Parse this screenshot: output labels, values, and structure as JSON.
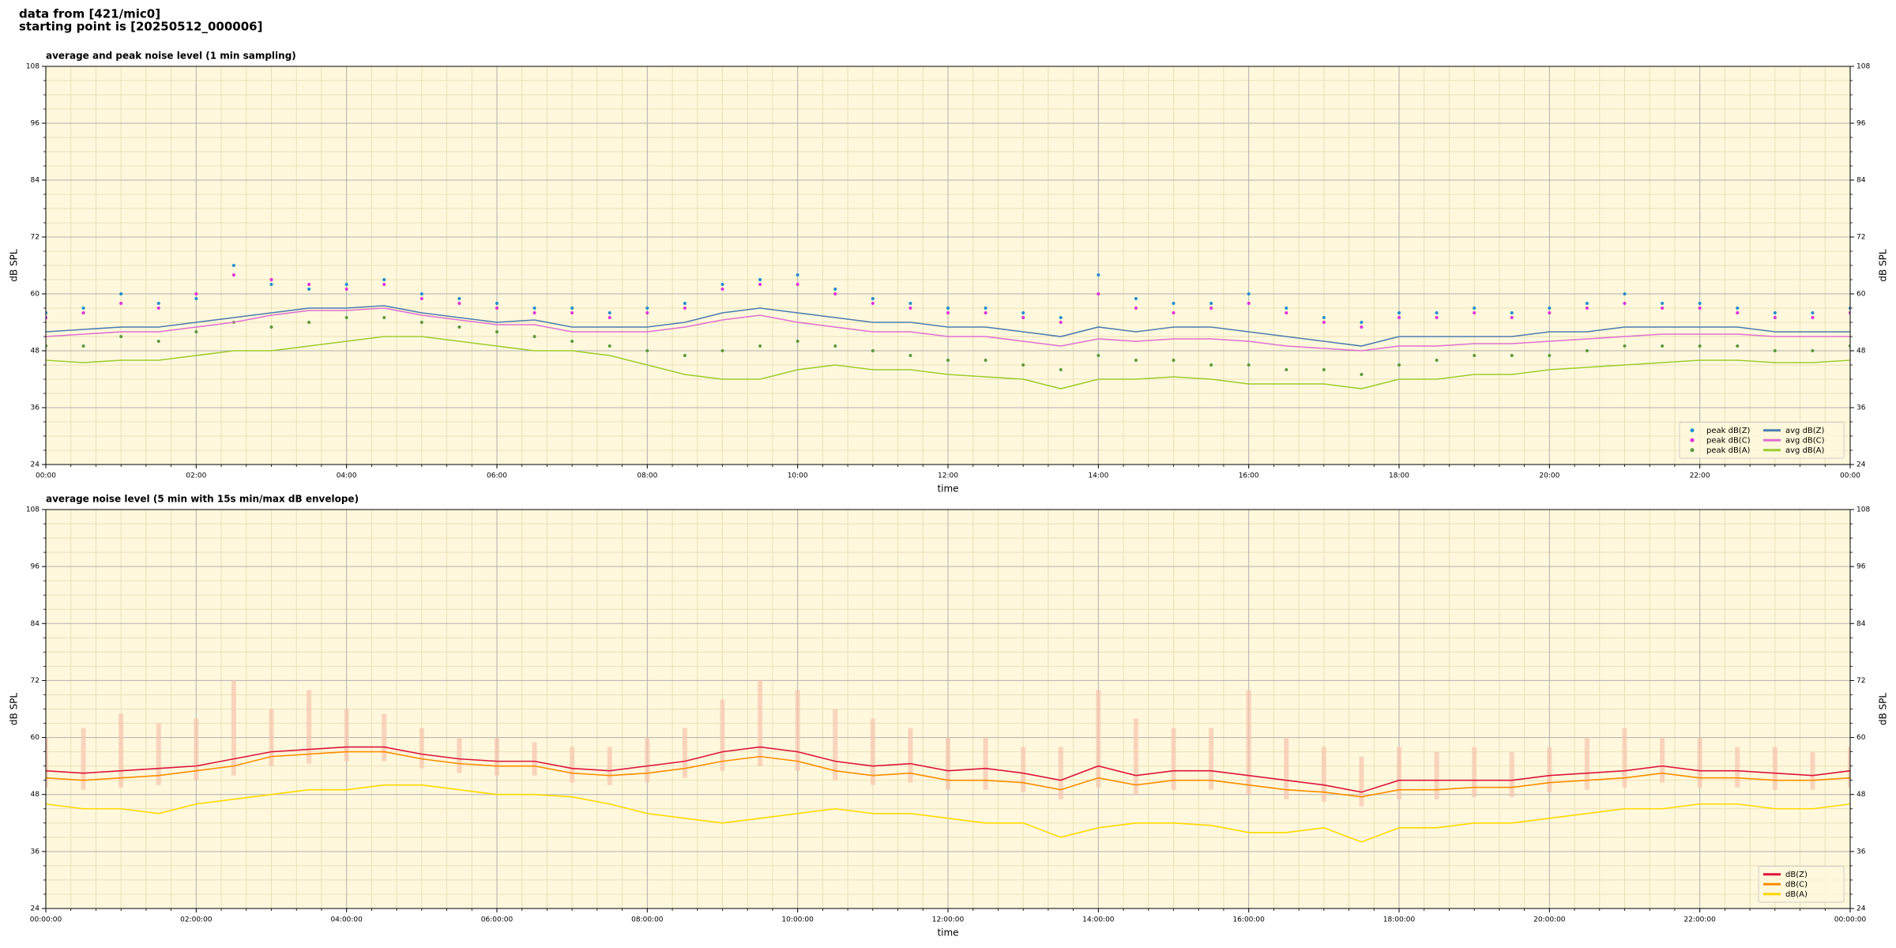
{
  "header": {
    "lines": [
      "data from [421/mic0]",
      "starting point is [20250512_000006]"
    ]
  },
  "chart_data": [
    {
      "type": "line",
      "title": "average and peak noise level (1 min sampling)",
      "xlabel": "time",
      "ylabel": "dB SPL",
      "ylabel_right": "dB SPL",
      "xlim": [
        0,
        24
      ],
      "ylim": [
        24,
        108
      ],
      "xticks": [
        {
          "value": 0,
          "label": "00:00"
        },
        {
          "value": 2,
          "label": "02:00"
        },
        {
          "value": 4,
          "label": "04:00"
        },
        {
          "value": 6,
          "label": "06:00"
        },
        {
          "value": 8,
          "label": "08:00"
        },
        {
          "value": 10,
          "label": "10:00"
        },
        {
          "value": 12,
          "label": "12:00"
        },
        {
          "value": 14,
          "label": "14:00"
        },
        {
          "value": 16,
          "label": "16:00"
        },
        {
          "value": 18,
          "label": "18:00"
        },
        {
          "value": 20,
          "label": "20:00"
        },
        {
          "value": 22,
          "label": "22:00"
        },
        {
          "value": 24,
          "label": "00:00"
        }
      ],
      "yticks": [
        24,
        36,
        48,
        60,
        72,
        84,
        96,
        108
      ],
      "grid": true,
      "minor_grid": true,
      "background": "#fff8dc",
      "legend": "lower right",
      "legend_columns": 2,
      "x": [
        0,
        0.5,
        1,
        1.5,
        2,
        2.5,
        3,
        3.5,
        4,
        4.5,
        5,
        5.5,
        6,
        6.5,
        7,
        7.5,
        8,
        8.5,
        9,
        9.5,
        10,
        10.5,
        11,
        11.5,
        12,
        12.5,
        13,
        13.5,
        14,
        14.5,
        15,
        15.5,
        16,
        16.5,
        17,
        17.5,
        18,
        18.5,
        19,
        19.5,
        20,
        20.5,
        21,
        21.5,
        22,
        22.5,
        23,
        23.5,
        24
      ],
      "series": [
        {
          "name": "peak dB(Z)",
          "type": "scatter",
          "color": "#1f8fd0",
          "values": [
            56,
            57,
            60,
            58,
            59,
            66,
            62,
            61,
            62,
            63,
            60,
            59,
            58,
            57,
            57,
            56,
            57,
            58,
            62,
            63,
            64,
            61,
            59,
            58,
            57,
            57,
            56,
            55,
            64,
            59,
            58,
            58,
            60,
            57,
            55,
            54,
            56,
            56,
            57,
            56,
            57,
            58,
            60,
            58,
            58,
            57,
            56,
            56,
            57
          ]
        },
        {
          "name": "peak dB(C)",
          "type": "scatter",
          "color": "#e030d8",
          "values": [
            55,
            56,
            58,
            57,
            60,
            64,
            63,
            62,
            61,
            62,
            59,
            58,
            57,
            56,
            56,
            55,
            56,
            57,
            61,
            62,
            62,
            60,
            58,
            57,
            56,
            56,
            55,
            54,
            60,
            57,
            56,
            57,
            58,
            56,
            54,
            53,
            55,
            55,
            56,
            55,
            56,
            57,
            58,
            57,
            57,
            56,
            55,
            55,
            56
          ]
        },
        {
          "name": "peak dB(A)",
          "type": "scatter",
          "color": "#5a9a40",
          "values": [
            49,
            49,
            51,
            50,
            52,
            54,
            53,
            54,
            55,
            55,
            54,
            53,
            52,
            51,
            50,
            49,
            48,
            47,
            48,
            49,
            50,
            49,
            48,
            47,
            46,
            46,
            45,
            44,
            47,
            46,
            46,
            45,
            45,
            44,
            44,
            43,
            45,
            46,
            47,
            47,
            47,
            48,
            49,
            49,
            49,
            49,
            48,
            48,
            49
          ]
        },
        {
          "name": "avg dB(Z)",
          "type": "line",
          "color": "#4a7eb0",
          "values": [
            52,
            52.5,
            53,
            53,
            54,
            55,
            56,
            57,
            57,
            57.5,
            56,
            55,
            54,
            54.5,
            53,
            53,
            53,
            54,
            56,
            57,
            56,
            55,
            54,
            54,
            53,
            53,
            52,
            51,
            53,
            52,
            53,
            53,
            52,
            51,
            50,
            49,
            51,
            51,
            51,
            51,
            52,
            52,
            53,
            53,
            53,
            53,
            52,
            52,
            52
          ]
        },
        {
          "name": "avg dB(C)",
          "type": "line",
          "color": "#e070d0",
          "values": [
            51,
            51.5,
            52,
            52,
            53,
            54,
            55.5,
            56.5,
            56.5,
            57,
            55.5,
            54.5,
            53.5,
            53.5,
            52,
            52,
            52,
            53,
            54.5,
            55.5,
            54,
            53,
            52,
            52,
            51,
            51,
            50,
            49,
            50.5,
            50,
            50.5,
            50.5,
            50,
            49,
            48.5,
            48,
            49,
            49,
            49.5,
            49.5,
            50,
            50.5,
            51,
            51.5,
            51.5,
            51.5,
            51,
            51,
            51
          ]
        },
        {
          "name": "avg dB(A)",
          "type": "line",
          "color": "#9acd32",
          "values": [
            46,
            45.5,
            46,
            46,
            47,
            48,
            48,
            49,
            50,
            51,
            51,
            50,
            49,
            48,
            48,
            47,
            45,
            43,
            42,
            42,
            44,
            45,
            44,
            44,
            43,
            42.5,
            42,
            40,
            42,
            42,
            42.5,
            42,
            41,
            41,
            41,
            40,
            42,
            42,
            43,
            43,
            44,
            44.5,
            45,
            45.5,
            46,
            46,
            45.5,
            45.5,
            46
          ]
        }
      ]
    },
    {
      "type": "line",
      "title": "average noise level (5 min with 15s min/max dB envelope)",
      "xlabel": "time",
      "ylabel": "dB SPL",
      "ylabel_right": "dB SPL",
      "xlim": [
        0,
        24
      ],
      "ylim": [
        24,
        108
      ],
      "xticks": [
        {
          "value": 0,
          "label": "00:00:00"
        },
        {
          "value": 2,
          "label": "02:00:00"
        },
        {
          "value": 4,
          "label": "04:00:00"
        },
        {
          "value": 6,
          "label": "06:00:00"
        },
        {
          "value": 8,
          "label": "08:00:00"
        },
        {
          "value": 10,
          "label": "10:00:00"
        },
        {
          "value": 12,
          "label": "12:00:00"
        },
        {
          "value": 14,
          "label": "14:00:00"
        },
        {
          "value": 16,
          "label": "16:00:00"
        },
        {
          "value": 18,
          "label": "18:00:00"
        },
        {
          "value": 20,
          "label": "20:00:00"
        },
        {
          "value": 22,
          "label": "22:00:00"
        },
        {
          "value": 24,
          "label": "00:00:00"
        }
      ],
      "yticks": [
        24,
        36,
        48,
        60,
        72,
        84,
        96,
        108
      ],
      "grid": true,
      "minor_grid": true,
      "background": "#fff8dc",
      "legend": "lower right",
      "legend_columns": 1,
      "x": [
        0,
        0.5,
        1,
        1.5,
        2,
        2.5,
        3,
        3.5,
        4,
        4.5,
        5,
        5.5,
        6,
        6.5,
        7,
        7.5,
        8,
        8.5,
        9,
        9.5,
        10,
        10.5,
        11,
        11.5,
        12,
        12.5,
        13,
        13.5,
        14,
        14.5,
        15,
        15.5,
        16,
        16.5,
        17,
        17.5,
        18,
        18.5,
        19,
        19.5,
        20,
        20.5,
        21,
        21.5,
        22,
        22.5,
        23,
        23.5,
        24
      ],
      "envelope": {
        "color": "#f6c4ae",
        "low": [
          49.5,
          49,
          49.5,
          50,
          51,
          52,
          54,
          54.5,
          55,
          55,
          53.5,
          52.5,
          52,
          52,
          50.5,
          50,
          50.5,
          51.5,
          53,
          54,
          53,
          51,
          50,
          50.5,
          49,
          49,
          48.5,
          47,
          49.5,
          48,
          49,
          49,
          48,
          47,
          46.5,
          45.5,
          47,
          47,
          47.5,
          47.5,
          48.5,
          49,
          49.5,
          50.5,
          49.5,
          49.5,
          49,
          49,
          49.5
        ],
        "high": [
          60,
          62,
          65,
          63,
          64,
          72,
          66,
          70,
          66,
          65,
          62,
          60,
          60,
          59,
          58,
          58,
          60,
          62,
          68,
          72,
          70,
          66,
          64,
          62,
          60,
          60,
          58,
          58,
          70,
          64,
          62,
          62,
          70,
          60,
          58,
          56,
          58,
          57,
          58,
          57,
          58,
          60,
          62,
          60,
          60,
          58,
          58,
          57,
          58
        ]
      },
      "series": [
        {
          "name": "dB(Z)",
          "type": "line",
          "color": "#dc143c",
          "values": [
            53,
            52.5,
            53,
            53.5,
            54,
            55.5,
            57,
            57.5,
            58,
            58,
            56.5,
            55.5,
            55,
            55,
            53.5,
            53,
            54,
            55,
            57,
            58,
            57,
            55,
            54,
            54.5,
            53,
            53.5,
            52.5,
            51,
            54,
            52,
            53,
            53,
            52,
            51,
            50,
            48.5,
            51,
            51,
            51,
            51,
            52,
            52.5,
            53,
            54,
            53,
            53,
            52.5,
            52,
            53
          ]
        },
        {
          "name": "dB(C)",
          "type": "line",
          "color": "#ff8c00",
          "values": [
            51.5,
            51,
            51.5,
            52,
            53,
            54,
            56,
            56.5,
            57,
            57,
            55.5,
            54.5,
            54,
            54,
            52.5,
            52,
            52.5,
            53.5,
            55,
            56,
            55,
            53,
            52,
            52.5,
            51,
            51,
            50.5,
            49,
            51.5,
            50,
            51,
            51,
            50,
            49,
            48.5,
            47.5,
            49,
            49,
            49.5,
            49.5,
            50.5,
            51,
            51.5,
            52.5,
            51.5,
            51.5,
            51,
            51,
            51.5
          ]
        },
        {
          "name": "dB(A)",
          "type": "line",
          "color": "#ffd700",
          "values": [
            46,
            45,
            45,
            44,
            46,
            47,
            48,
            49,
            49,
            50,
            50,
            49,
            48,
            48,
            47.5,
            46,
            44,
            43,
            42,
            43,
            44,
            45,
            44,
            44,
            43,
            42,
            42,
            39,
            41,
            42,
            42,
            41.5,
            40,
            40,
            41,
            38,
            41,
            41,
            42,
            42,
            43,
            44,
            45,
            45,
            46,
            46,
            45,
            45,
            46
          ]
        }
      ]
    }
  ]
}
